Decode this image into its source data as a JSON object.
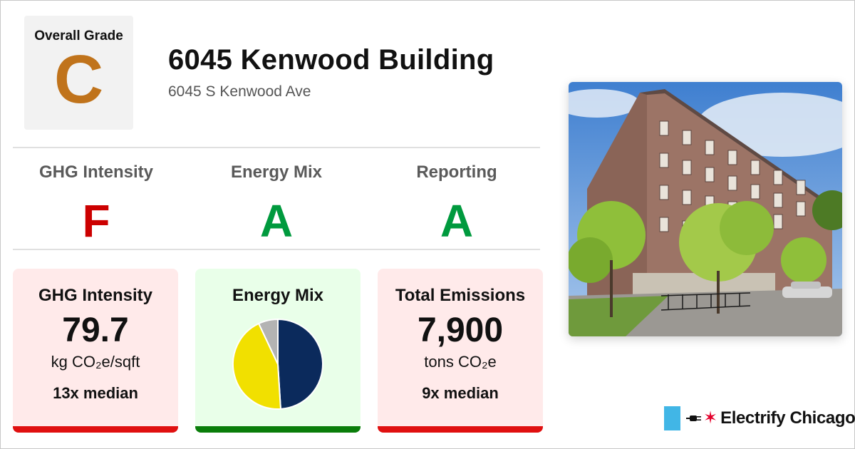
{
  "overall": {
    "label": "Overall Grade",
    "grade": "C",
    "color": "#c0731b"
  },
  "building": {
    "name": "6045 Kenwood Building",
    "address": "6045 S Kenwood Ave"
  },
  "sub_grades": [
    {
      "label": "GHG Intensity",
      "grade": "F",
      "color": "#cc0000"
    },
    {
      "label": "Energy Mix",
      "grade": "A",
      "color": "#009a3e"
    },
    {
      "label": "Reporting",
      "grade": "A",
      "color": "#009a3e"
    }
  ],
  "cards": {
    "ghg": {
      "title": "GHG Intensity",
      "value": "79.7",
      "unit": "kg CO₂e/sqft",
      "median": "13x median",
      "bg": "#ffeaea",
      "bar": "#e01010"
    },
    "mix": {
      "title": "Energy Mix",
      "bg": "#e9ffe9",
      "bar": "#0a7d0a"
    },
    "emissions": {
      "title": "Total Emissions",
      "value": "7,900",
      "unit": "tons CO₂e",
      "median": "9x median",
      "bg": "#ffeaea",
      "bar": "#e01010"
    }
  },
  "chart_data": {
    "type": "pie",
    "slices": [
      {
        "value": 0.49,
        "color": "#0b2a5c"
      },
      {
        "value": 0.44,
        "color": "#f1e000"
      },
      {
        "value": 0.07,
        "color": "#b3b3b3"
      }
    ]
  },
  "brand": {
    "name": "Electrify Chicago",
    "flag_color": "#41b6e6",
    "star_color": "#e4002b"
  }
}
